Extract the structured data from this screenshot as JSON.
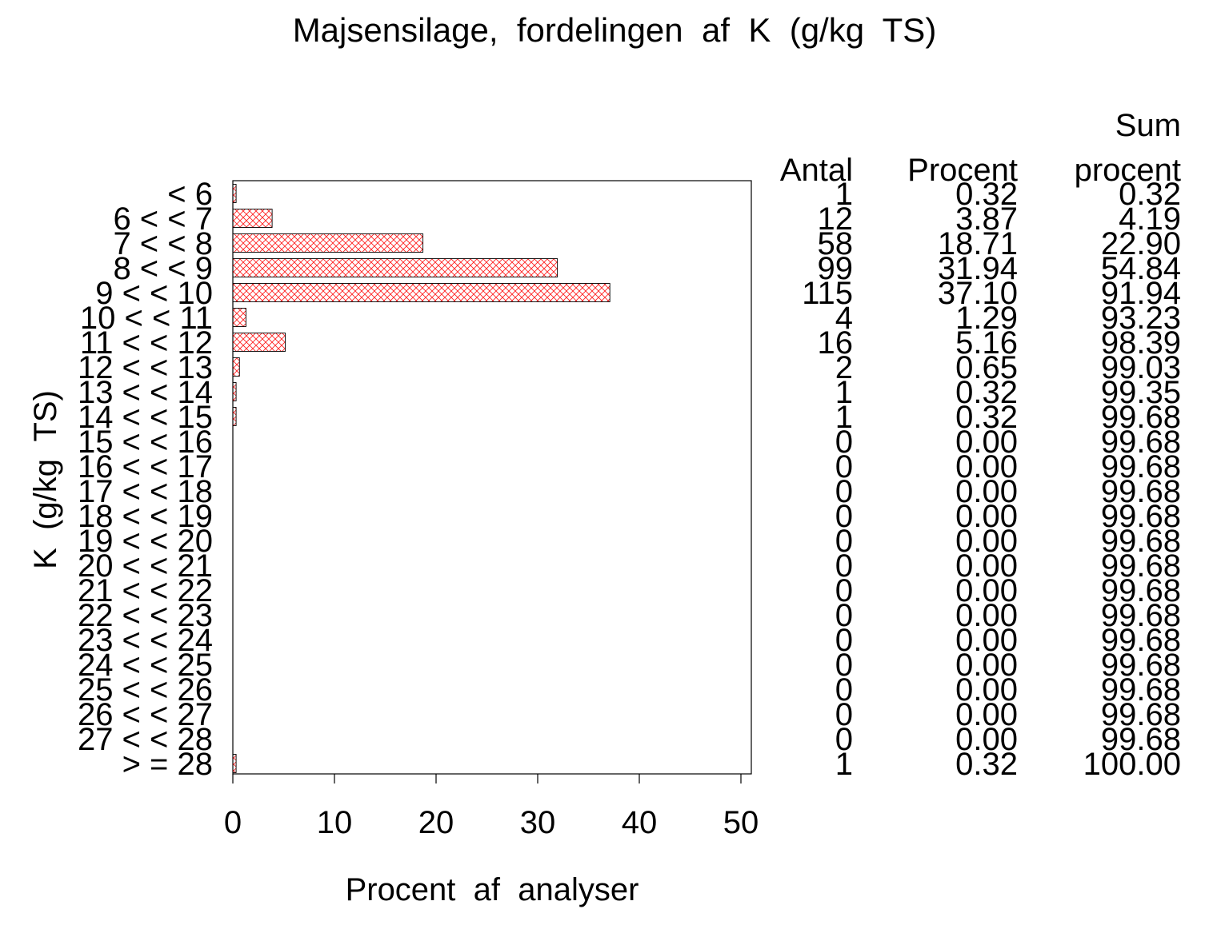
{
  "chart_data": {
    "type": "bar",
    "orientation": "horizontal",
    "title": "Majsensilage,  fordelingen  af  K  (g/kg  TS)",
    "xlabel": "Procent  af  analyser",
    "ylabel": "K  (g/kg  TS)",
    "xlim": [
      0,
      50
    ],
    "x_ticks": [
      "0",
      "10",
      "20",
      "30",
      "40",
      "50"
    ],
    "grid": false,
    "bar_fill": "crosshatch",
    "bar_color": "#ff0000",
    "categories": [
      "< 6",
      "6 < < 7",
      "7 < < 8",
      "8 < < 9",
      "9 < < 10",
      "10 < < 11",
      "11 < < 12",
      "12 < < 13",
      "13 < < 14",
      "14 < < 15",
      "15 < < 16",
      "16 < < 17",
      "17 < < 18",
      "18 < < 19",
      "19 < < 20",
      "20 < < 21",
      "21 < < 22",
      "22 < < 23",
      "23 < < 24",
      "24 < < 25",
      "25 < < 26",
      "26 < < 27",
      "27 < < 28",
      "> = 28"
    ],
    "values": [
      0.32,
      3.87,
      18.71,
      31.94,
      37.1,
      1.29,
      5.16,
      0.65,
      0.32,
      0.32,
      0,
      0,
      0,
      0,
      0,
      0,
      0,
      0,
      0,
      0,
      0,
      0,
      0,
      0.32
    ],
    "table": {
      "headers": {
        "antal": "Antal",
        "procent": "Procent",
        "sum_line1": "Sum",
        "sum_line2": "procent"
      },
      "antal": [
        "1",
        "12",
        "58",
        "99",
        "115",
        "4",
        "16",
        "2",
        "1",
        "1",
        "0",
        "0",
        "0",
        "0",
        "0",
        "0",
        "0",
        "0",
        "0",
        "0",
        "0",
        "0",
        "0",
        "1"
      ],
      "procent": [
        "0.32",
        "3.87",
        "18.71",
        "31.94",
        "37.10",
        "1.29",
        "5.16",
        "0.65",
        "0.32",
        "0.32",
        "0.00",
        "0.00",
        "0.00",
        "0.00",
        "0.00",
        "0.00",
        "0.00",
        "0.00",
        "0.00",
        "0.00",
        "0.00",
        "0.00",
        "0.00",
        "0.32"
      ],
      "sum_procent": [
        "0.32",
        "4.19",
        "22.90",
        "54.84",
        "91.94",
        "93.23",
        "98.39",
        "99.03",
        "99.35",
        "99.68",
        "99.68",
        "99.68",
        "99.68",
        "99.68",
        "99.68",
        "99.68",
        "99.68",
        "99.68",
        "99.68",
        "99.68",
        "99.68",
        "99.68",
        "99.68",
        "100.00"
      ]
    }
  }
}
